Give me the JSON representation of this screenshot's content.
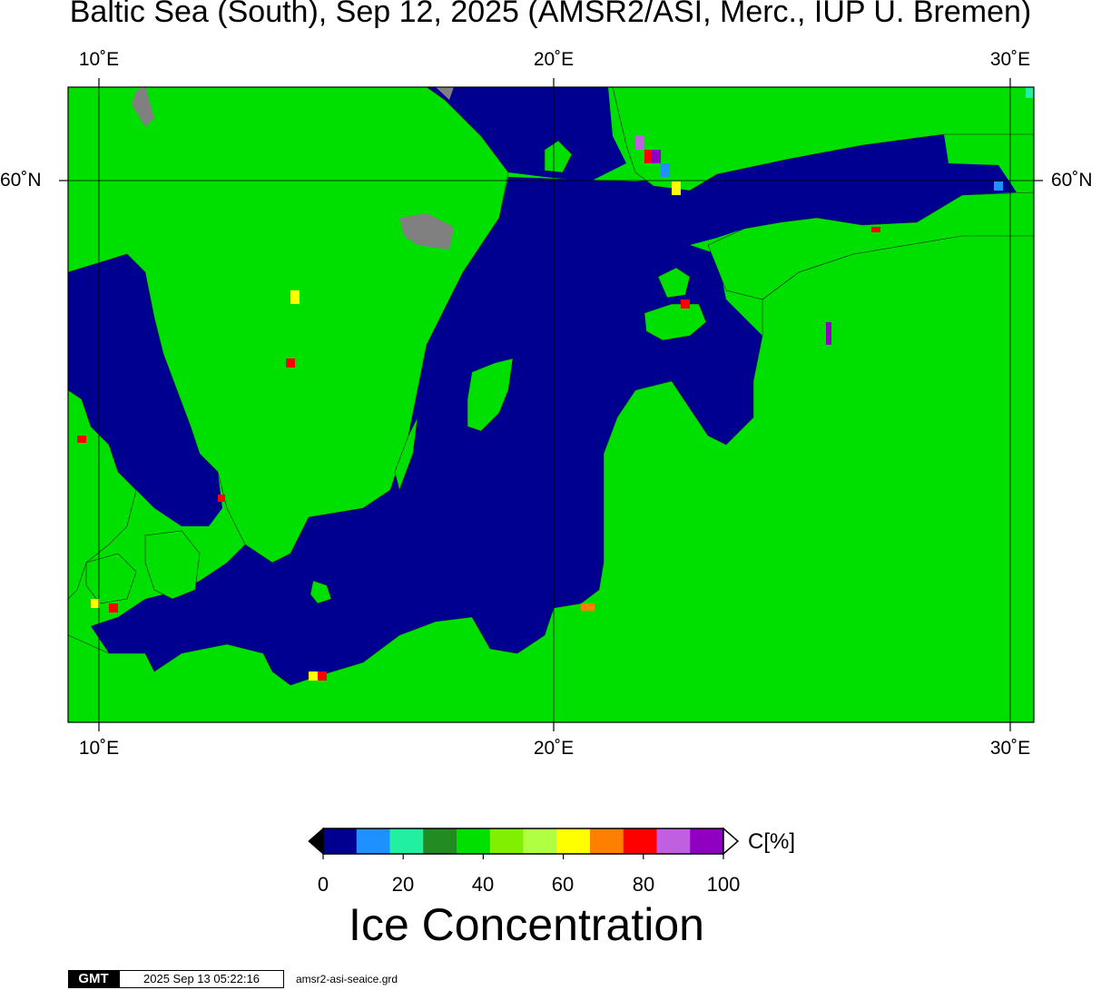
{
  "title": "Baltic Sea (South), Sep 12, 2025 (AMSR2/ASI, Merc., IUP U. Bremen)",
  "map": {
    "lon_ticks": [
      "10˚E",
      "20˚E",
      "30˚E"
    ],
    "lat_ticks": [
      "60˚N"
    ],
    "land_color": "#00e000",
    "water_color": "#000090",
    "missing_color": "#808080"
  },
  "colorbar": {
    "unit": "C[%]",
    "ticks": [
      "0",
      "20",
      "40",
      "60",
      "80",
      "100"
    ],
    "colors": [
      "#000090",
      "#1e90ff",
      "#20f0a0",
      "#228b22",
      "#00e000",
      "#80f000",
      "#b0ff40",
      "#ffff00",
      "#ff8000",
      "#ff0000",
      "#c060e0",
      "#9000c0"
    ],
    "label": "Ice Concentration"
  },
  "footer": {
    "logo": "GMT",
    "timestamp": "2025 Sep 13 05:22:16",
    "filename": "amsr2-asi-seaice.grd"
  }
}
